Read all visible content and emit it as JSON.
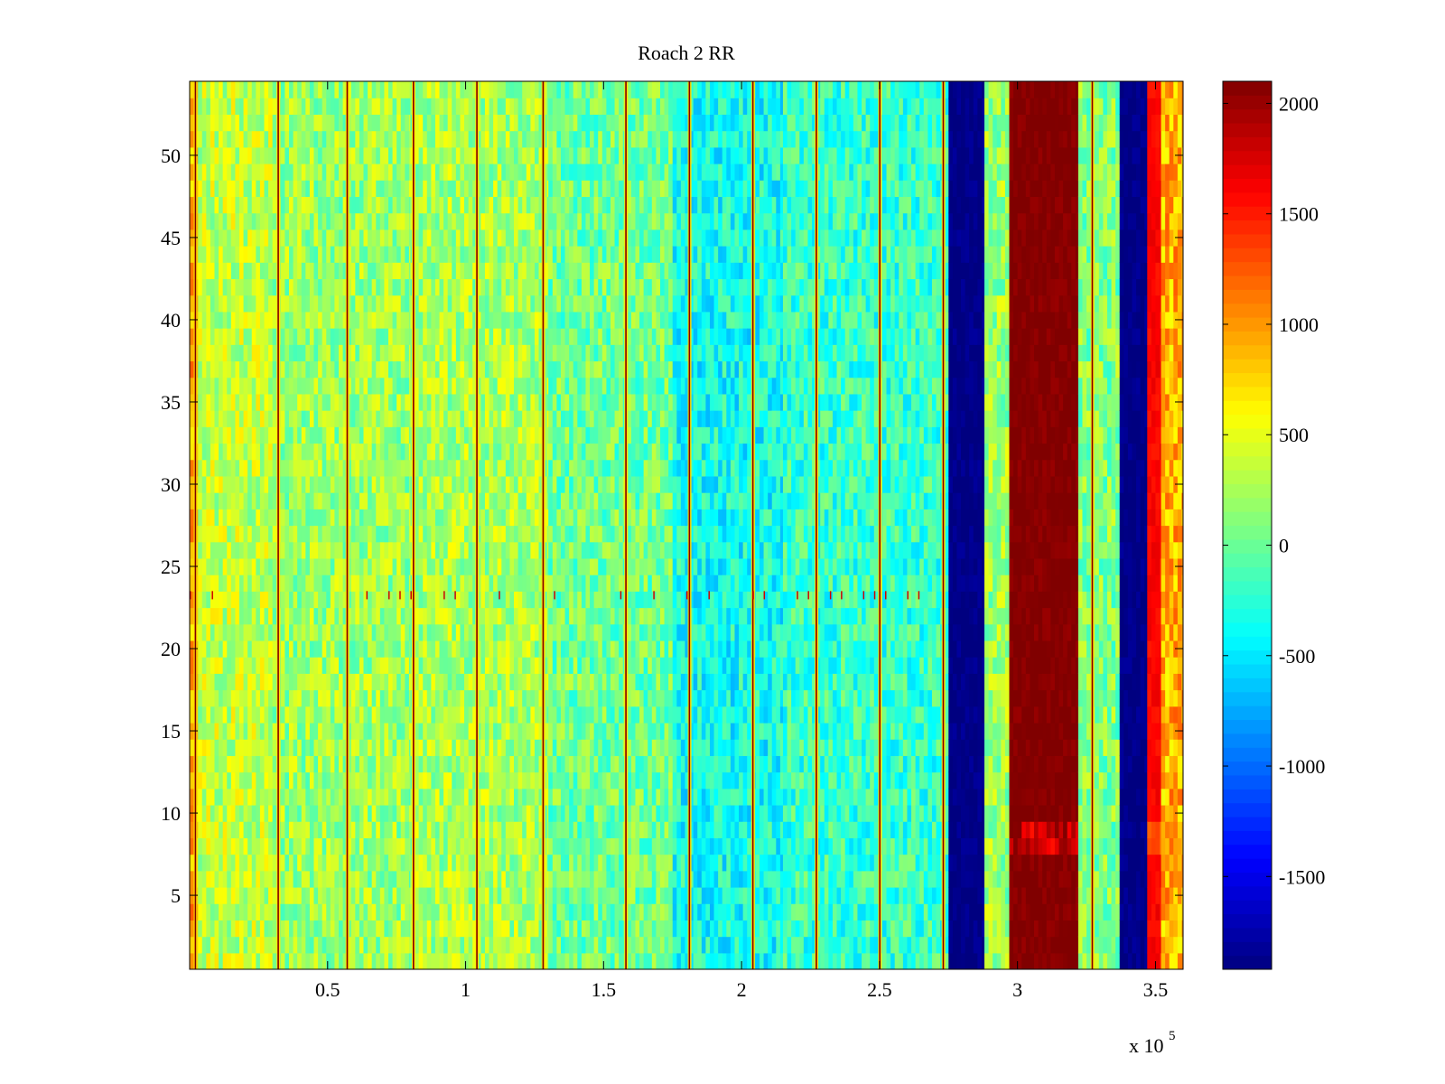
{
  "chart_data": {
    "type": "heatmap",
    "title": "Roach 2 RR",
    "xlabel": "",
    "ylabel": "",
    "x_multiplier_label": "x 10",
    "x_multiplier_exponent": "5",
    "xlim": [
      0,
      360000
    ],
    "ylim": [
      0.5,
      54.5
    ],
    "x_ticks": [
      {
        "value": 50000,
        "label": "0.5"
      },
      {
        "value": 100000,
        "label": "1"
      },
      {
        "value": 150000,
        "label": "1.5"
      },
      {
        "value": 200000,
        "label": "2"
      },
      {
        "value": 250000,
        "label": "2.5"
      },
      {
        "value": 300000,
        "label": "3"
      },
      {
        "value": 350000,
        "label": "3.5"
      }
    ],
    "y_ticks": [
      {
        "value": 5,
        "label": "5"
      },
      {
        "value": 10,
        "label": "10"
      },
      {
        "value": 15,
        "label": "15"
      },
      {
        "value": 20,
        "label": "20"
      },
      {
        "value": 25,
        "label": "25"
      },
      {
        "value": 30,
        "label": "30"
      },
      {
        "value": 35,
        "label": "35"
      },
      {
        "value": 40,
        "label": "40"
      },
      {
        "value": 45,
        "label": "45"
      },
      {
        "value": 50,
        "label": "50"
      }
    ],
    "colorbar": {
      "colormap": "jet",
      "clim": [
        -1920,
        2100
      ],
      "ticks": [
        {
          "value": 2000,
          "label": "2000"
        },
        {
          "value": 1500,
          "label": "1500"
        },
        {
          "value": 1000,
          "label": "1000"
        },
        {
          "value": 500,
          "label": "500"
        },
        {
          "value": 0,
          "label": "0"
        },
        {
          "value": -500,
          "label": "-500"
        },
        {
          "value": -1000,
          "label": "-1000"
        },
        {
          "value": -1500,
          "label": "-1500"
        }
      ]
    },
    "column_profile": [
      {
        "x_start": 0,
        "x_end": 3000,
        "value": 900
      },
      {
        "x_start": 3000,
        "x_end": 30000,
        "value": 350
      },
      {
        "x_start": 30000,
        "x_end": 80000,
        "value": 200
      },
      {
        "x_start": 80000,
        "x_end": 130000,
        "value": 250
      },
      {
        "x_start": 130000,
        "x_end": 175000,
        "value": 30
      },
      {
        "x_start": 175000,
        "x_end": 215000,
        "value": -350
      },
      {
        "x_start": 215000,
        "x_end": 275000,
        "value": -200
      },
      {
        "x_start": 275000,
        "x_end": 288000,
        "value": -1900
      },
      {
        "x_start": 288000,
        "x_end": 297000,
        "value": 200
      },
      {
        "x_start": 297000,
        "x_end": 322000,
        "value": 2100
      },
      {
        "x_start": 322000,
        "x_end": 337000,
        "value": 100
      },
      {
        "x_start": 337000,
        "x_end": 347000,
        "value": -1900
      },
      {
        "x_start": 347000,
        "x_end": 352000,
        "value": 1600
      },
      {
        "x_start": 352000,
        "x_end": 360000,
        "value": 900
      }
    ],
    "bright_lines_x": [
      2000,
      32000,
      57000,
      81000,
      104000,
      128000,
      158000,
      181000,
      204000,
      227000,
      250000,
      273000,
      327000
    ],
    "dark_row_y": 23
  }
}
